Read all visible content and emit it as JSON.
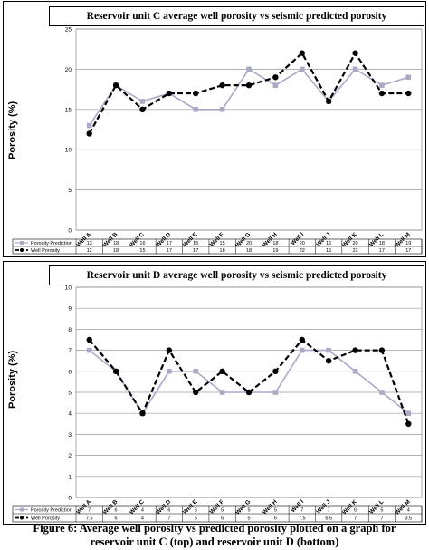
{
  "chart_data": [
    {
      "type": "line",
      "title": "Reservoir unit C average well porosity vs seismic predicted porosity",
      "ylabel": "Porosity (%)",
      "xlabel": "",
      "ylim": [
        0,
        25
      ],
      "yticks": [
        0,
        5,
        10,
        15,
        20,
        25
      ],
      "grid": true,
      "categories": [
        "Well A",
        "Well B",
        "Well C",
        "Well D",
        "Well E",
        "Well F",
        "Well G",
        "Well H",
        "Well I",
        "Well J",
        "Well K",
        "Well L",
        "Well M"
      ],
      "series": [
        {
          "name": "Porosity Prediction",
          "color": "#a9a9c6",
          "style": "solid-square",
          "values": [
            13,
            18,
            16,
            17,
            15,
            15,
            20,
            18,
            20,
            16,
            20,
            18,
            19
          ]
        },
        {
          "name": "Well Porosity",
          "color": "#000000",
          "style": "dashed-circle",
          "values": [
            12,
            18,
            15,
            17,
            17,
            18,
            18,
            19,
            22,
            16,
            22,
            17,
            17
          ]
        }
      ],
      "table_values": [
        [
          "13",
          "18",
          "16",
          "17",
          "15",
          "15",
          "20",
          "18",
          "20",
          "16",
          "20",
          "18",
          "19"
        ],
        [
          "12",
          "18",
          "15",
          "17",
          "17",
          "18",
          "18",
          "19",
          "22",
          "16",
          "22",
          "17",
          "17"
        ]
      ],
      "legend_position": "bottom-table"
    },
    {
      "type": "line",
      "title": "Reservoir unit D average well porosity vs seismic predicted porosity",
      "ylabel": "Porosity (%)",
      "xlabel": "",
      "ylim": [
        0,
        10
      ],
      "yticks": [
        0,
        1,
        2,
        3,
        4,
        5,
        6,
        7,
        8,
        9,
        10
      ],
      "grid": true,
      "categories": [
        "Well A",
        "Well B",
        "Well C",
        "Well D",
        "Well E",
        "Well F",
        "Well G",
        "Well H",
        "Well I",
        "Well J",
        "Well K",
        "Well L",
        "Well M"
      ],
      "series": [
        {
          "name": "Porosity Prediction",
          "color": "#a9a9c6",
          "style": "solid-square",
          "values": [
            7,
            6,
            4,
            6,
            6,
            5,
            5,
            5,
            7,
            7,
            6,
            5,
            4
          ]
        },
        {
          "name": "Well Porosity",
          "color": "#000000",
          "style": "dashed-circle",
          "values": [
            7.5,
            6,
            4,
            7,
            5,
            6,
            5,
            6,
            7.5,
            6.5,
            7,
            7,
            3.5
          ]
        }
      ],
      "table_values": [
        [
          "7",
          "6",
          "4",
          "6",
          "6",
          "5",
          "5",
          "5",
          "7",
          "7",
          "6",
          "5",
          "4"
        ],
        [
          "7.5",
          "6",
          "4",
          "7",
          "5",
          "6",
          "5",
          "6",
          "7.5",
          "6.5",
          "7",
          "7",
          "3.5"
        ]
      ],
      "legend_position": "bottom-table"
    }
  ],
  "caption": {
    "line1": "Figure 6: Average well porosity vs predicted porosity plotted on a graph for",
    "line2": "reservoir unit C (top) and reservoir unit D (bottom)"
  }
}
